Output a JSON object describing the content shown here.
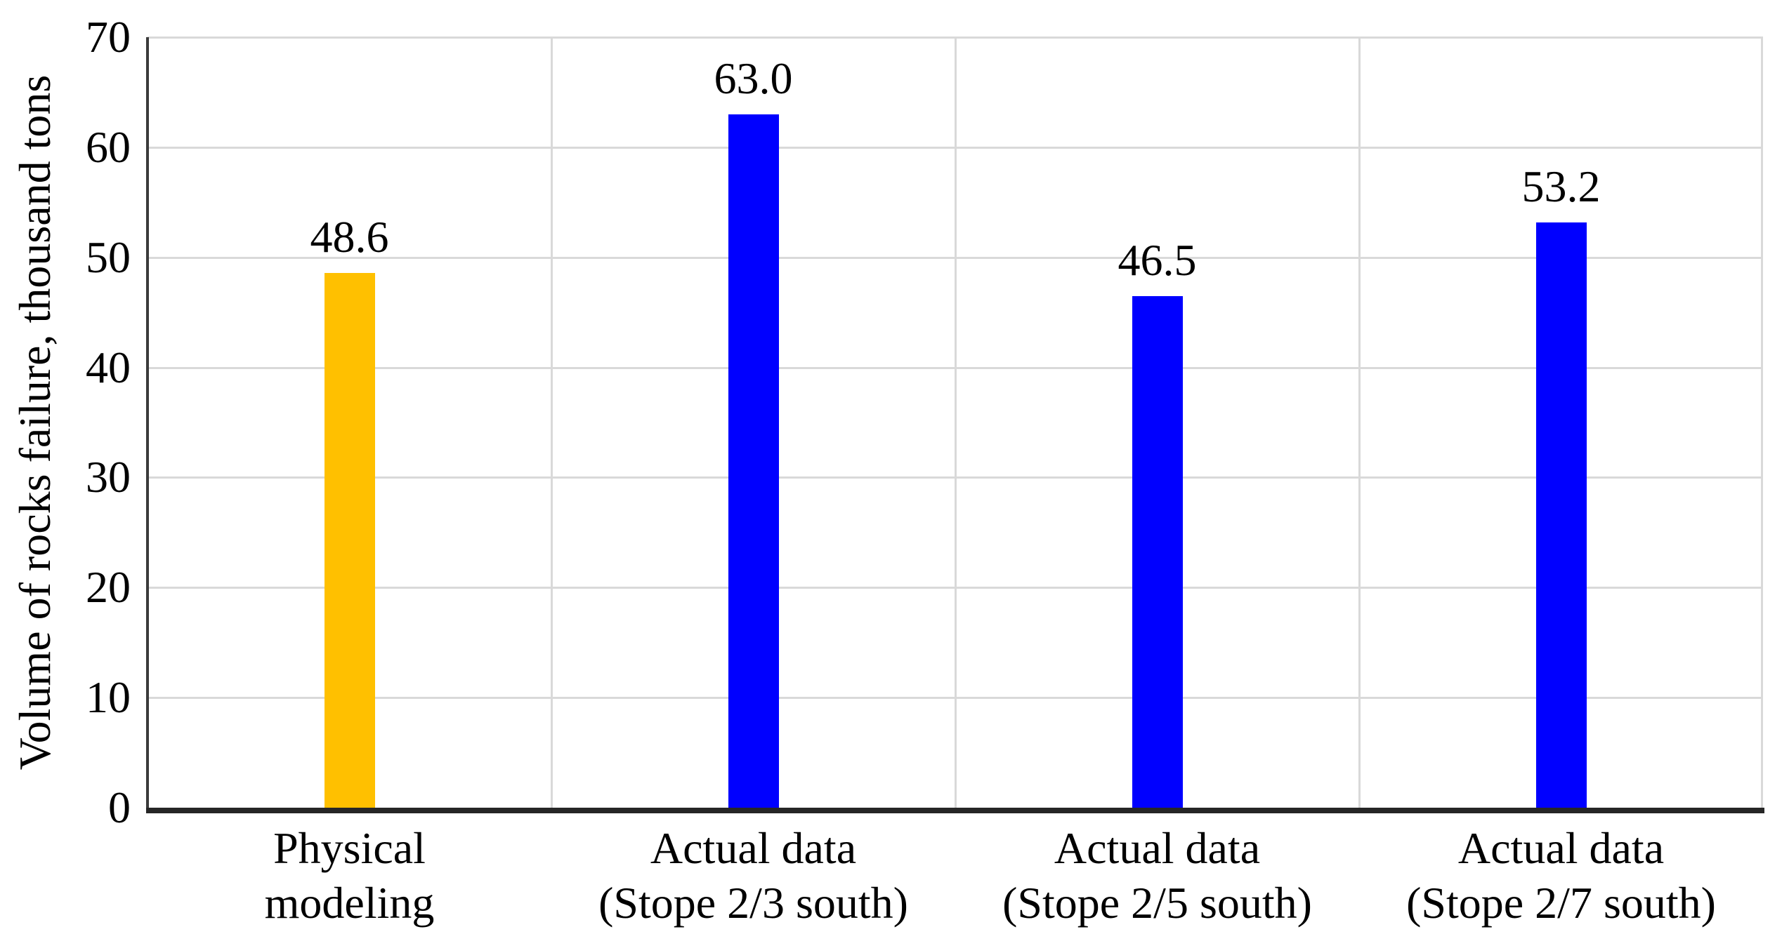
{
  "chart_data": {
    "type": "bar",
    "title": "",
    "ylabel": "Volume of rocks failure, thousand tons",
    "xlabel": "",
    "ylim": [
      0,
      70
    ],
    "yticks": [
      0,
      10,
      20,
      30,
      40,
      50,
      60,
      70
    ],
    "grid": "horizontal gridlines at every 10 units plus vertical category-boundary separators, light gray; thick black x-axis baseline",
    "legend_position": "none",
    "categories": [
      {
        "lines": [
          "Physical",
          "modeling"
        ]
      },
      {
        "lines": [
          "Actual data",
          "(Stope 2/3 south)"
        ]
      },
      {
        "lines": [
          "Actual data",
          "(Stope 2/5 south)"
        ]
      },
      {
        "lines": [
          "Actual data",
          "(Stope 2/7 south)"
        ]
      }
    ],
    "series": [
      {
        "name": "Volume of rocks failure",
        "values": [
          48.6,
          63.0,
          46.5,
          53.2
        ],
        "data_labels": [
          "48.6",
          "63.0",
          "46.5",
          "53.2"
        ],
        "bar_colors": [
          "#FFC000",
          "#0000FF",
          "#0000FF",
          "#0000FF"
        ]
      }
    ],
    "colors": {
      "physical_modeling_bar": "#FFC000",
      "actual_data_bar": "#0000FF",
      "gridline": "#D9D9D9",
      "y_axis_line": "#3B3B3B",
      "x_axis_line": "#262626",
      "text": "#000000",
      "background": "#FFFFFF"
    }
  }
}
